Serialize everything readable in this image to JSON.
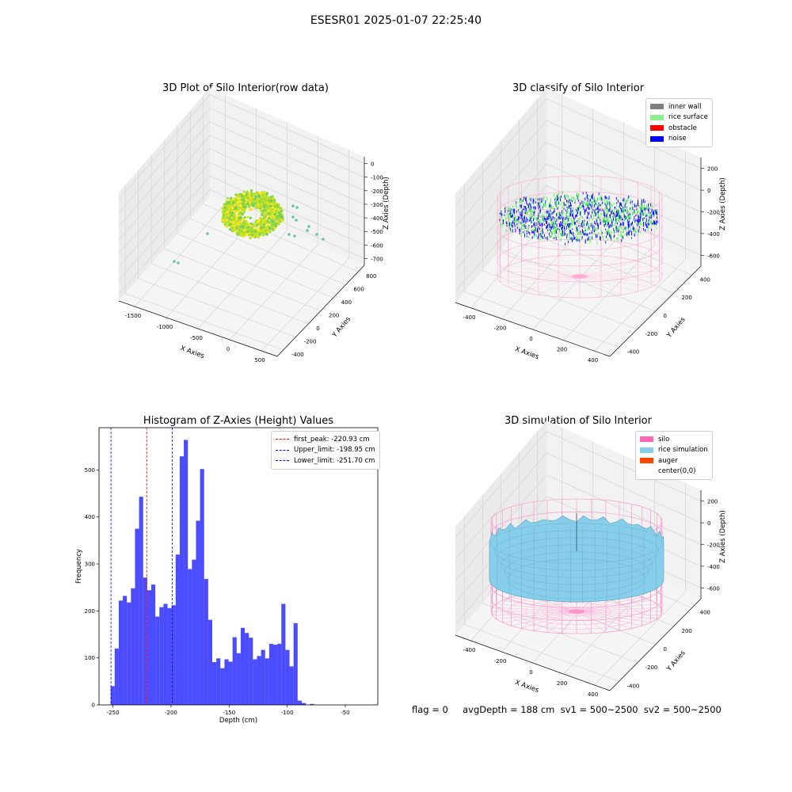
{
  "page": {
    "title": "ESESR01 2025-01-07 22:25:40",
    "footer": "flag = 0     avgDepth = 188 cm  sv1 = 500~2500  sv2 = 500~2500"
  },
  "panels": {
    "raw": {
      "title": "3D Plot of Silo Interior(row data)",
      "xlabel": "X Axies",
      "ylabel": "Y Axies",
      "zlabel": "Z Axies (Depth)",
      "xticks": [
        "-1500",
        "-1000",
        "-500",
        "0",
        "500"
      ],
      "yticks": [
        "-400",
        "-200",
        "0",
        "200",
        "400",
        "600",
        "800"
      ],
      "zticks": [
        "0",
        "-100",
        "-200",
        "-300",
        "-400",
        "-500",
        "-600",
        "-700"
      ]
    },
    "classify": {
      "title": "3D classify of Silo Interior",
      "xlabel": "X Axies",
      "ylabel": "Y Axies",
      "zlabel": "Z Axies (Depth)",
      "xticks": [
        "-400",
        "-200",
        "0",
        "200",
        "400"
      ],
      "yticks": [
        "-400",
        "-200",
        "0",
        "200",
        "400"
      ],
      "zticks": [
        "200",
        "0",
        "-200",
        "-400",
        "-600"
      ],
      "legend": [
        {
          "label": "inner wall",
          "color": "#808080"
        },
        {
          "label": "rice surface",
          "color": "#90ee90"
        },
        {
          "label": "obstacle",
          "color": "#ff0000"
        },
        {
          "label": "noise",
          "color": "#0000ff"
        }
      ]
    },
    "simulation": {
      "title": "3D simulation of Silo Interior",
      "xlabel": "X Axies",
      "ylabel": "Y Axies",
      "zlabel": "Z Axies (Depth)",
      "xticks": [
        "-400",
        "-200",
        "0",
        "200",
        "400"
      ],
      "yticks": [
        "-400",
        "-200",
        "0",
        "200",
        "400"
      ],
      "zticks": [
        "200",
        "0",
        "-200",
        "-400",
        "-600"
      ],
      "legend": [
        {
          "label": "silo",
          "color": "#ff69b4"
        },
        {
          "label": "rice simulation",
          "color": "#87ceeb"
        },
        {
          "label": "auger",
          "color": "#ff4500"
        },
        {
          "label": "center(0,0)",
          "color": ""
        }
      ]
    }
  },
  "chart_data": [
    {
      "type": "bar",
      "title": "Histogram of Z-Axies (Height) Values",
      "xlabel": "Depth (cm)",
      "ylabel": "Frequency",
      "xlim": [
        -262,
        -22
      ],
      "ylim": [
        0,
        590
      ],
      "xticks": [
        -250,
        -200,
        -150,
        -100,
        -50
      ],
      "yticks": [
        0,
        100,
        200,
        300,
        400,
        500
      ],
      "bar_color": "#0000ff",
      "bins": [
        [
          -252,
          -248.5,
          40
        ],
        [
          -248.5,
          -245,
          120
        ],
        [
          -245,
          -241.5,
          222
        ],
        [
          -241.5,
          -238,
          232
        ],
        [
          -238,
          -234.5,
          218
        ],
        [
          -234.5,
          -231,
          248
        ],
        [
          -231,
          -227.5,
          375
        ],
        [
          -227.5,
          -224,
          443
        ],
        [
          -224,
          -220.5,
          271
        ],
        [
          -220.5,
          -217,
          244
        ],
        [
          -217,
          -213.5,
          256
        ],
        [
          -213.5,
          -210,
          188
        ],
        [
          -210,
          -206.5,
          208
        ],
        [
          -206.5,
          -203,
          215
        ],
        [
          -203,
          -199.5,
          206
        ],
        [
          -199.5,
          -196,
          212
        ],
        [
          -196,
          -192.5,
          320
        ],
        [
          -192.5,
          -189,
          529
        ],
        [
          -189,
          -185.5,
          564
        ],
        [
          -185.5,
          -182,
          289
        ],
        [
          -182,
          -178.5,
          309
        ],
        [
          -178.5,
          -175,
          392
        ],
        [
          -175,
          -171.5,
          502
        ],
        [
          -171.5,
          -168,
          268
        ],
        [
          -168,
          -164.5,
          181
        ],
        [
          -164.5,
          -161,
          91
        ],
        [
          -161,
          -157.5,
          99
        ],
        [
          -157.5,
          -154,
          78
        ],
        [
          -154,
          -150.5,
          97
        ],
        [
          -150.5,
          -147,
          92
        ],
        [
          -147,
          -143.5,
          144
        ],
        [
          -143.5,
          -140,
          110
        ],
        [
          -140,
          -136.5,
          164
        ],
        [
          -136.5,
          -133,
          153
        ],
        [
          -133,
          -129.5,
          143
        ],
        [
          -129.5,
          -126,
          97
        ],
        [
          -126,
          -122.5,
          104
        ],
        [
          -122.5,
          -119,
          117
        ],
        [
          -119,
          -115.5,
          99
        ],
        [
          -115.5,
          -112,
          130
        ],
        [
          -112,
          -108.5,
          128
        ],
        [
          -108.5,
          -105,
          130
        ],
        [
          -105,
          -101.5,
          215
        ],
        [
          -101.5,
          -98,
          117
        ],
        [
          -98,
          -94.5,
          82
        ],
        [
          -94.5,
          -91,
          174
        ],
        [
          -91,
          -87.5,
          9
        ],
        [
          -87.5,
          -84,
          4
        ],
        [
          -84,
          -80.5,
          0
        ],
        [
          -80.5,
          -77,
          2
        ]
      ],
      "vlines": [
        {
          "name": "first_peak: -220.93 cm",
          "x": -220.93,
          "color": "#ff0000"
        },
        {
          "name": "Upper_limit: -198.95 cm",
          "x": -198.95,
          "color": "#0000ff"
        },
        {
          "name": "Lower_limit: -251.70 cm",
          "x": -251.7,
          "color": "#0000ff"
        }
      ]
    }
  ]
}
